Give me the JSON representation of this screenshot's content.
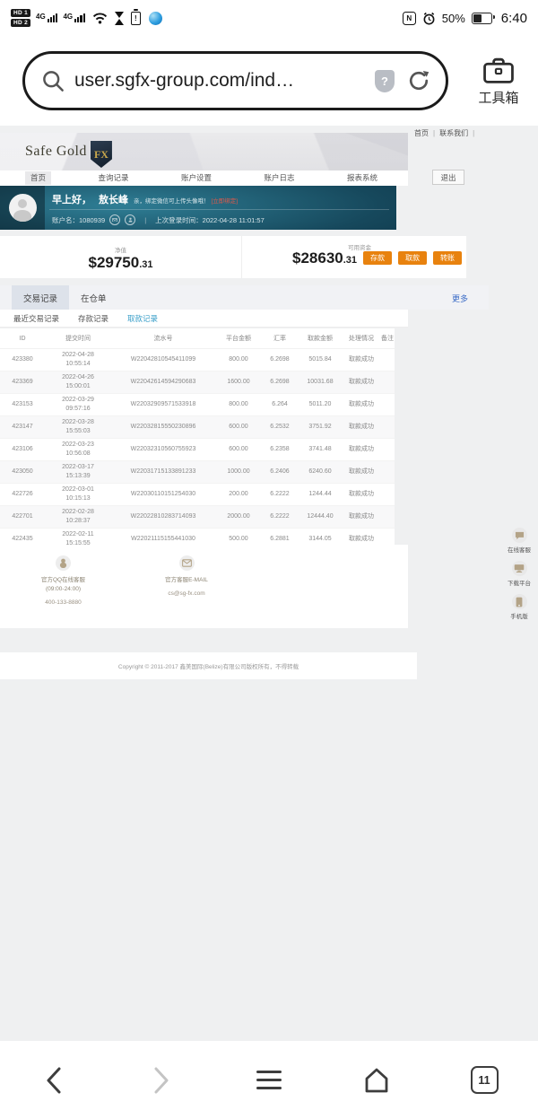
{
  "status_bar": {
    "sim1": "HD 1",
    "sim2": "HD 2",
    "network1": "4G",
    "network2": "4G",
    "battery_alert": "!",
    "nfc": "N",
    "battery_percent": "50%",
    "time": "6:40"
  },
  "browser": {
    "url": "user.sgfx-group.com/ind…",
    "security_badge": "?",
    "toolbox_label": "工具箱",
    "tab_count": "11",
    "icons": {
      "left": "search-icon",
      "security": "shield-question-icon",
      "action": "refresh-icon",
      "toolbox": "briefcase-icon"
    }
  },
  "site": {
    "logo_text": "Safe Gold",
    "logo_badge": "FX",
    "top_links": {
      "home": "首页",
      "contact": "联系我们",
      "sep": "|"
    },
    "nav": [
      "首页",
      "查询记录",
      "账户设置",
      "账户日志",
      "报表系统"
    ],
    "nav_active_index": 0,
    "logout": "退出",
    "greeting": {
      "hello": "早上好，",
      "name": "敖长峰",
      "tip": "亲，绑定微信可上传头像哦！",
      "bind_link": "[立即绑定]",
      "account": "账户名：1080939",
      "pipe": "|",
      "last_login": "上次登录时间：2022-04-28 11:01:57"
    },
    "balance": {
      "net_label": "净值",
      "net_value": "$29750",
      "net_cents": ".31",
      "avail_label": "可用资金",
      "avail_value": "$28630",
      "avail_cents": ".31",
      "actions": [
        "存款",
        "取款",
        "转账"
      ]
    },
    "tabs": {
      "items": [
        "交易记录",
        "在仓单"
      ],
      "active_index": 0,
      "more": "更多",
      "subtabs": [
        "最近交易记录",
        "存款记录",
        "取款记录"
      ],
      "active_subtab_index": 2
    },
    "table": {
      "headers": [
        "ID",
        "提交时间",
        "流水号",
        "平台金额",
        "汇率",
        "取款金额",
        "处理情况",
        "备注"
      ],
      "rows": [
        {
          "id": "423380",
          "date": "2022-04-28",
          "t": "10:55:14",
          "flow": "W22042810545411099",
          "amount": "800.00",
          "rate": "6.2698",
          "payout": "5015.84",
          "status": "取款成功",
          "note": ""
        },
        {
          "id": "423369",
          "date": "2022-04-26",
          "t": "15:00:01",
          "flow": "W22042614594290683",
          "amount": "1600.00",
          "rate": "6.2698",
          "payout": "10031.68",
          "status": "取款成功",
          "note": ""
        },
        {
          "id": "423153",
          "date": "2022-03-29",
          "t": "09:57:16",
          "flow": "W22032909571533918",
          "amount": "800.00",
          "rate": "6.264",
          "payout": "5011.20",
          "status": "取款成功",
          "note": ""
        },
        {
          "id": "423147",
          "date": "2022-03-28",
          "t": "15:55:03",
          "flow": "W22032815550230896",
          "amount": "600.00",
          "rate": "6.2532",
          "payout": "3751.92",
          "status": "取款成功",
          "note": ""
        },
        {
          "id": "423106",
          "date": "2022-03-23",
          "t": "10:56:08",
          "flow": "W22032310560755923",
          "amount": "600.00",
          "rate": "6.2358",
          "payout": "3741.48",
          "status": "取款成功",
          "note": ""
        },
        {
          "id": "423050",
          "date": "2022-03-17",
          "t": "15:13:39",
          "flow": "W22031715133891233",
          "amount": "1000.00",
          "rate": "6.2406",
          "payout": "6240.60",
          "status": "取款成功",
          "note": ""
        },
        {
          "id": "422726",
          "date": "2022-03-01",
          "t": "10:15:13",
          "flow": "W22030110151254030",
          "amount": "200.00",
          "rate": "6.2222",
          "payout": "1244.44",
          "status": "取款成功",
          "note": ""
        },
        {
          "id": "422701",
          "date": "2022-02-28",
          "t": "10:28:37",
          "flow": "W22022810283714093",
          "amount": "2000.00",
          "rate": "6.2222",
          "payout": "12444.40",
          "status": "取款成功",
          "note": ""
        },
        {
          "id": "422435",
          "date": "2022-02-11",
          "t": "15:15:55",
          "flow": "W22021115155441030",
          "amount": "500.00",
          "rate": "6.2881",
          "payout": "3144.05",
          "status": "取款成功",
          "note": ""
        }
      ]
    },
    "footer": {
      "qq_title": "官方QQ在线客服",
      "qq_hours": "(09:00-24:00)",
      "qq_phone": "400-133-8880",
      "email_title": "官方客服E-MAIL",
      "email": "cs@sg-fx.com",
      "copyright": "Copyright © 2011-2017 鑫美国际(Belize)有限公司版权所有，不得转载"
    },
    "floatbar": [
      {
        "icon": "chat-icon",
        "label": "在线客服"
      },
      {
        "icon": "monitor-icon",
        "label": "下载平台"
      },
      {
        "icon": "phone-icon",
        "label": "手机版"
      }
    ]
  }
}
